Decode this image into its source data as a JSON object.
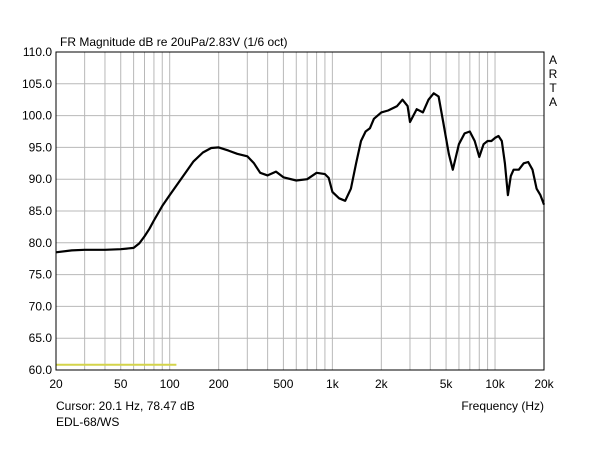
{
  "chart_data": {
    "type": "line",
    "title": "FR Magnitude dB re 20uPa/2.83V (1/6 oct)",
    "xlabel": "Frequency (Hz)",
    "ylabel": "",
    "x_scale": "log",
    "xlim": [
      20,
      20000
    ],
    "ylim": [
      60,
      110
    ],
    "grid": true,
    "side_label": "ARTA",
    "x_ticks": [
      {
        "value": 20,
        "label": "20"
      },
      {
        "value": 50,
        "label": "50"
      },
      {
        "value": 100,
        "label": "100"
      },
      {
        "value": 200,
        "label": "200"
      },
      {
        "value": 500,
        "label": "500"
      },
      {
        "value": 1000,
        "label": "1k"
      },
      {
        "value": 2000,
        "label": "2k"
      },
      {
        "value": 5000,
        "label": "5k"
      },
      {
        "value": 10000,
        "label": "10k"
      },
      {
        "value": 20000,
        "label": "20k"
      }
    ],
    "y_ticks": [
      {
        "value": 60,
        "label": "60.0"
      },
      {
        "value": 65,
        "label": "65.0"
      },
      {
        "value": 70,
        "label": "70.0"
      },
      {
        "value": 75,
        "label": "75.0"
      },
      {
        "value": 80,
        "label": "80.0"
      },
      {
        "value": 85,
        "label": "85.0"
      },
      {
        "value": 90,
        "label": "90.0"
      },
      {
        "value": 95,
        "label": "95.0"
      },
      {
        "value": 100,
        "label": "100.0"
      },
      {
        "value": 105,
        "label": "105.0"
      },
      {
        "value": 110,
        "label": "110.0"
      }
    ],
    "series": [
      {
        "color": "#000000",
        "x": [
          20,
          25,
          30,
          40,
          50,
          60,
          65,
          70,
          75,
          80,
          90,
          100,
          110,
          125,
          140,
          160,
          180,
          200,
          230,
          260,
          300,
          330,
          360,
          400,
          450,
          500,
          600,
          700,
          800,
          900,
          950,
          1000,
          1100,
          1200,
          1300,
          1400,
          1500,
          1600,
          1700,
          1800,
          2000,
          2200,
          2500,
          2700,
          2900,
          3000,
          3300,
          3600,
          3900,
          4200,
          4500,
          4800,
          5200,
          5500,
          6000,
          6500,
          7000,
          7500,
          8000,
          8500,
          9000,
          9500,
          10000,
          10500,
          11000,
          11500,
          12000,
          12500,
          13000,
          14000,
          15000,
          16000,
          17000,
          18000,
          19000,
          20000
        ],
        "y": [
          78.5,
          78.8,
          78.9,
          78.9,
          79.0,
          79.2,
          79.9,
          81.0,
          82.2,
          83.5,
          85.8,
          87.5,
          89.0,
          91.0,
          92.8,
          94.2,
          94.9,
          95.0,
          94.5,
          94.0,
          93.6,
          92.5,
          91.0,
          90.6,
          91.2,
          90.3,
          89.8,
          90.0,
          91.0,
          90.8,
          90.2,
          88.0,
          87.0,
          86.6,
          88.5,
          92.5,
          96.0,
          97.5,
          98.0,
          99.5,
          100.5,
          100.8,
          101.5,
          102.5,
          101.5,
          99.0,
          101.0,
          100.5,
          102.5,
          103.5,
          103.0,
          99.0,
          94.0,
          91.5,
          95.5,
          97.2,
          97.5,
          96.0,
          93.5,
          95.5,
          96.0,
          96.0,
          96.5,
          96.8,
          96.0,
          92.5,
          87.5,
          90.5,
          91.5,
          91.5,
          92.5,
          92.7,
          91.5,
          88.5,
          87.5,
          86.0
        ]
      }
    ],
    "reference_line": {
      "color": "#d4d44a",
      "x": [
        20,
        110
      ],
      "y": [
        60.5,
        60.5
      ]
    }
  },
  "footer": {
    "cursor": "Cursor: 20.1 Hz, 78.47 dB",
    "device": "EDL-68/WS"
  }
}
